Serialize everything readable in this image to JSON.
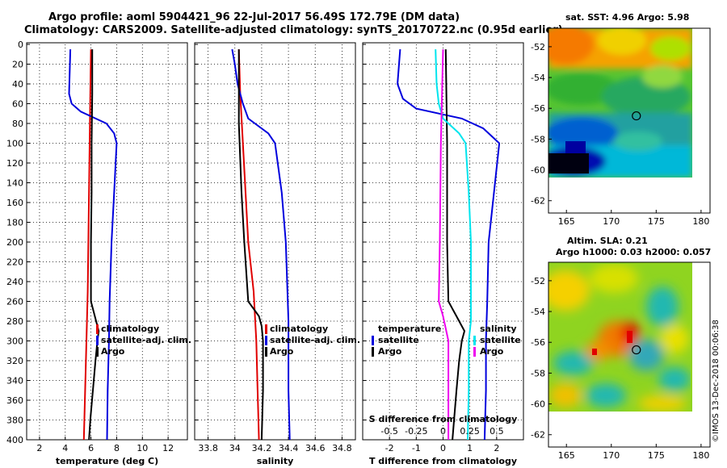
{
  "figure": {
    "title_line1": "Argo profile: aoml 5904421_96 22-Jul-2017 56.49S 172.79E (DM data)",
    "title_line2": "Climatology: CARS2009. Satellite-adjusted climatology: synTS_20170722.nc (0.95d earlier)",
    "credit": "©IMOS 13-Dec-2018 00:06:38"
  },
  "colors": {
    "climatology": "#e00000",
    "satellite": "#0000dd",
    "argo": "#000000",
    "cyan": "#00e5ee",
    "magenta": "#ee00ee"
  },
  "chart_data": [
    {
      "type": "line",
      "name": "temperature",
      "xlabel": "temperature (deg C)",
      "xlim": [
        1,
        13.5
      ],
      "ylim": [
        0,
        400
      ],
      "xticks": [
        2,
        4,
        6,
        8,
        10,
        12
      ],
      "yticks": [
        0,
        20,
        40,
        60,
        80,
        100,
        120,
        140,
        160,
        180,
        200,
        220,
        240,
        260,
        280,
        300,
        320,
        340,
        360,
        380,
        400
      ],
      "legend": {
        "position": "right",
        "items": [
          "climatology",
          "satellite-adj. clim.",
          "Argo"
        ]
      },
      "series": [
        {
          "name": "climatology",
          "color": "#e00000",
          "depth": [
            5,
            50,
            100,
            150,
            200,
            250,
            300,
            350,
            400
          ],
          "values": [
            6.0,
            5.95,
            5.9,
            5.85,
            5.8,
            5.75,
            5.65,
            5.55,
            5.45
          ]
        },
        {
          "name": "satellite-adj. clim.",
          "color": "#0000dd",
          "depth": [
            5,
            50,
            60,
            68,
            80,
            90,
            100,
            150,
            200,
            260,
            300,
            350,
            400
          ],
          "values": [
            4.4,
            4.3,
            4.5,
            5.2,
            7.2,
            7.8,
            8.0,
            7.8,
            7.6,
            7.45,
            7.4,
            7.3,
            7.25
          ]
        },
        {
          "name": "Argo",
          "color": "#000000",
          "depth": [
            5,
            50,
            100,
            150,
            200,
            260,
            275,
            290,
            300,
            320,
            350,
            380,
            400
          ],
          "values": [
            6.1,
            6.1,
            6.05,
            6.05,
            6.0,
            6.0,
            6.3,
            6.6,
            6.5,
            6.35,
            6.15,
            5.95,
            5.85
          ]
        }
      ]
    },
    {
      "type": "line",
      "name": "salinity",
      "xlabel": "salinity",
      "xlim": [
        33.7,
        34.9
      ],
      "ylim": [
        0,
        400
      ],
      "xticks": [
        33.8,
        34,
        34.2,
        34.4,
        34.6,
        34.8
      ],
      "yticks": [
        0,
        20,
        40,
        60,
        80,
        100,
        120,
        140,
        160,
        180,
        200,
        220,
        240,
        260,
        280,
        300,
        320,
        340,
        360,
        380,
        400
      ],
      "legend": {
        "position": "right",
        "items": [
          "climatology",
          "satellite-adj. clim.",
          "Argo"
        ]
      },
      "series": [
        {
          "name": "climatology",
          "color": "#e00000",
          "depth": [
            5,
            50,
            100,
            150,
            200,
            250,
            300,
            350,
            400
          ],
          "values": [
            34.03,
            34.04,
            34.06,
            34.08,
            34.1,
            34.14,
            34.16,
            34.17,
            34.18
          ]
        },
        {
          "name": "satellite-adj. clim.",
          "color": "#0000dd",
          "depth": [
            5,
            20,
            40,
            60,
            75,
            90,
            100,
            150,
            200,
            280,
            300,
            350,
            400
          ],
          "values": [
            33.98,
            34.0,
            34.02,
            34.06,
            34.1,
            34.25,
            34.3,
            34.35,
            34.38,
            34.4,
            34.4,
            34.4,
            34.41
          ]
        },
        {
          "name": "Argo",
          "color": "#000000",
          "depth": [
            5,
            40,
            80,
            150,
            200,
            260,
            275,
            285,
            300,
            350,
            400
          ],
          "values": [
            34.03,
            34.03,
            34.03,
            34.05,
            34.07,
            34.1,
            34.18,
            34.2,
            34.21,
            34.21,
            34.2
          ]
        }
      ]
    },
    {
      "type": "line",
      "name": "difference",
      "xlabel": "T difference from climatology",
      "xlabel_top": "S difference from climatology",
      "xlim": [
        -3,
        3
      ],
      "xlim_salinity": [
        -0.75,
        0.75
      ],
      "ylim": [
        0,
        400
      ],
      "xticks": [
        -2,
        -1,
        0,
        1,
        2
      ],
      "xticks_top": [
        -0.5,
        -0.25,
        0,
        0.25,
        0.5
      ],
      "yticks": [
        0,
        20,
        40,
        60,
        80,
        100,
        120,
        140,
        160,
        180,
        200,
        220,
        240,
        260,
        280,
        300,
        320,
        340,
        360,
        380,
        400
      ],
      "legend_temperature": {
        "heading": "temperature",
        "items": [
          "satellite",
          "Argo"
        ]
      },
      "legend_salinity": {
        "heading": "salinity",
        "items": [
          "satellite",
          "Argo"
        ]
      },
      "series": [
        {
          "name": "T satellite",
          "color": "#0000dd",
          "depth": [
            5,
            40,
            55,
            65,
            75,
            85,
            100,
            150,
            200,
            260,
            300,
            350,
            400
          ],
          "values": [
            -1.6,
            -1.7,
            -1.5,
            -1.0,
            0.7,
            1.5,
            2.1,
            1.9,
            1.7,
            1.65,
            1.6,
            1.6,
            1.55
          ]
        },
        {
          "name": "T Argo",
          "color": "#000000",
          "depth": [
            5,
            100,
            200,
            260,
            275,
            290,
            300,
            320,
            350,
            400
          ],
          "values": [
            0.1,
            0.15,
            0.15,
            0.2,
            0.5,
            0.8,
            0.7,
            0.6,
            0.5,
            0.35
          ]
        },
        {
          "name": "S satellite",
          "color": "#00e5ee",
          "depth": [
            5,
            40,
            60,
            75,
            90,
            100,
            150,
            200,
            280,
            300,
            350,
            400
          ],
          "values": [
            -0.07,
            -0.06,
            -0.04,
            0.0,
            0.15,
            0.21,
            0.24,
            0.26,
            0.26,
            0.24,
            0.24,
            0.23
          ]
        },
        {
          "name": "S Argo",
          "color": "#ee00ee",
          "depth": [
            5,
            50,
            100,
            200,
            260,
            275,
            290,
            300,
            350,
            400
          ],
          "values": [
            0.0,
            -0.01,
            -0.02,
            -0.03,
            -0.04,
            0.0,
            0.03,
            0.05,
            0.05,
            0.05
          ]
        }
      ]
    },
    {
      "type": "heatmap",
      "name": "sst_map",
      "title": "sat. SST: 4.96 Argo: 5.98",
      "xlim": [
        163,
        181
      ],
      "ylim": [
        -62.8,
        -50.8
      ],
      "xticks": [
        165,
        170,
        175,
        180
      ],
      "yticks": [
        -52,
        -54,
        -56,
        -58,
        -60,
        -62
      ],
      "data_extent": {
        "lon": [
          163.7,
          180.2
        ],
        "lat": [
          -60.2,
          -50.8
        ]
      },
      "marker": {
        "lon": 172.79,
        "lat": -56.49
      }
    },
    {
      "type": "heatmap",
      "name": "sla_map",
      "title_line1": "Altim. SLA: 0.21",
      "title_line2": "Argo h1000: 0.03 h2000: 0.057",
      "xlim": [
        163,
        181
      ],
      "ylim": [
        -62.8,
        -50.8
      ],
      "xticks": [
        165,
        170,
        175,
        180
      ],
      "yticks": [
        -52,
        -54,
        -56,
        -58,
        -60,
        -62
      ],
      "data_extent": {
        "lon": [
          163.7,
          180.2
        ],
        "lat": [
          -60.2,
          -50.8
        ]
      },
      "marker": {
        "lon": 172.79,
        "lat": -56.49
      }
    }
  ]
}
